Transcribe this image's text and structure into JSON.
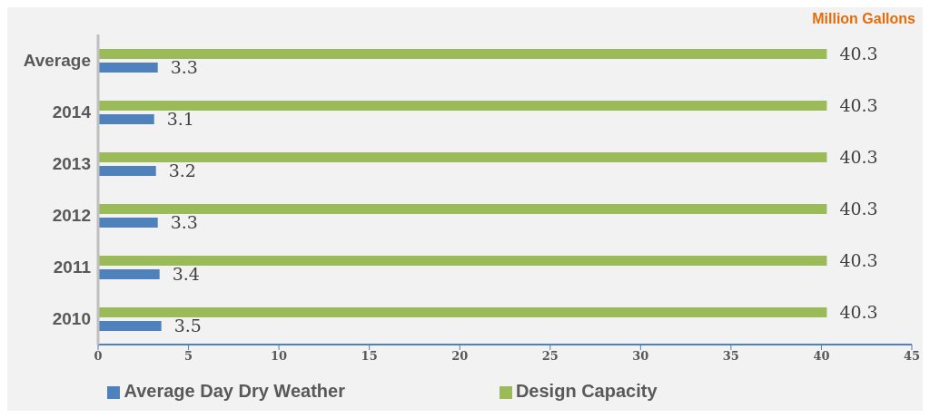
{
  "chart_data": {
    "type": "bar",
    "orientation": "horizontal",
    "xlabel": "Million Gallons",
    "categories": [
      "Average",
      "2014",
      "2013",
      "2012",
      "2011",
      "2010"
    ],
    "series": [
      {
        "name": "Design Capacity",
        "color": "#9bbb59",
        "values": [
          40.3,
          40.3,
          40.3,
          40.3,
          40.3,
          40.3
        ]
      },
      {
        "name": "Average Day Dry Weather",
        "color": "#4f81bd",
        "values": [
          3.3,
          3.1,
          3.2,
          3.3,
          3.4,
          3.5
        ]
      }
    ],
    "xlim": [
      0,
      45
    ],
    "xticks": [
      0,
      5,
      10,
      15,
      20,
      25,
      30,
      35,
      40,
      45
    ],
    "grid": false,
    "legend": "bottom",
    "data_labels": true
  }
}
